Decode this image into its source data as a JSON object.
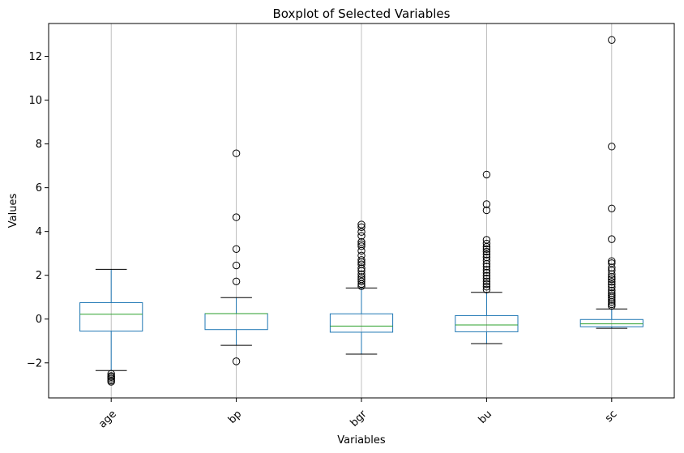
{
  "chart_data": {
    "type": "boxplot",
    "title": "Boxplot of Selected Variables",
    "xlabel": "Variables",
    "ylabel": "Values",
    "ylim": [
      -3.6,
      13.5
    ],
    "yticks": [
      -2,
      0,
      2,
      4,
      6,
      8,
      10,
      12
    ],
    "ytick_labels": [
      "−2",
      "0",
      "2",
      "4",
      "6",
      "8",
      "10",
      "12"
    ],
    "grid": "vertical",
    "x_tick_rotation": 45,
    "colors": {
      "box": "#1f77b4",
      "median": "#2ca02c",
      "whisker": "#1f77b4",
      "cap": "#000000",
      "flier": "#000000",
      "grid": "#b0b0b0"
    },
    "series": [
      {
        "name": "age",
        "whisker_low": -2.35,
        "q1": -0.55,
        "median": 0.22,
        "q3": 0.75,
        "whisker_high": 2.27,
        "outliers": [
          -2.5,
          -2.6,
          -2.65,
          -2.72,
          -2.8,
          -2.86
        ]
      },
      {
        "name": "bp",
        "whisker_low": -1.2,
        "q1": -0.48,
        "median": 0.25,
        "q3": 0.25,
        "whisker_high": 0.98,
        "outliers": [
          7.57,
          4.65,
          3.2,
          2.45,
          1.72,
          -1.93
        ]
      },
      {
        "name": "bgr",
        "whisker_low": -1.6,
        "q1": -0.6,
        "median": -0.32,
        "q3": 0.24,
        "whisker_high": 1.42,
        "outliers": [
          4.32,
          4.2,
          3.98,
          3.8,
          3.52,
          3.42,
          3.33,
          3.12,
          2.9,
          2.7,
          2.6,
          2.5,
          2.32,
          2.2,
          2.05,
          1.92,
          1.82,
          1.72,
          1.6,
          1.5
        ]
      },
      {
        "name": "bu",
        "whisker_low": -1.12,
        "q1": -0.58,
        "median": -0.27,
        "q3": 0.16,
        "whisker_high": 1.22,
        "outliers": [
          6.6,
          5.25,
          4.97,
          3.62,
          3.45,
          3.3,
          3.2,
          3.08,
          2.95,
          2.82,
          2.68,
          2.52,
          2.4,
          2.25,
          2.12,
          1.98,
          1.85,
          1.72,
          1.6,
          1.48,
          1.35
        ]
      },
      {
        "name": "sc",
        "whisker_low": -0.42,
        "q1": -0.35,
        "median": -0.22,
        "q3": -0.02,
        "whisker_high": 0.46,
        "outliers": [
          12.75,
          7.88,
          5.05,
          3.65,
          2.65,
          2.55,
          2.35,
          2.22,
          2.05,
          1.92,
          1.82,
          1.7,
          1.58,
          1.45,
          1.3,
          1.18,
          1.08,
          0.98,
          0.88,
          0.78,
          0.68,
          0.6
        ]
      }
    ]
  }
}
